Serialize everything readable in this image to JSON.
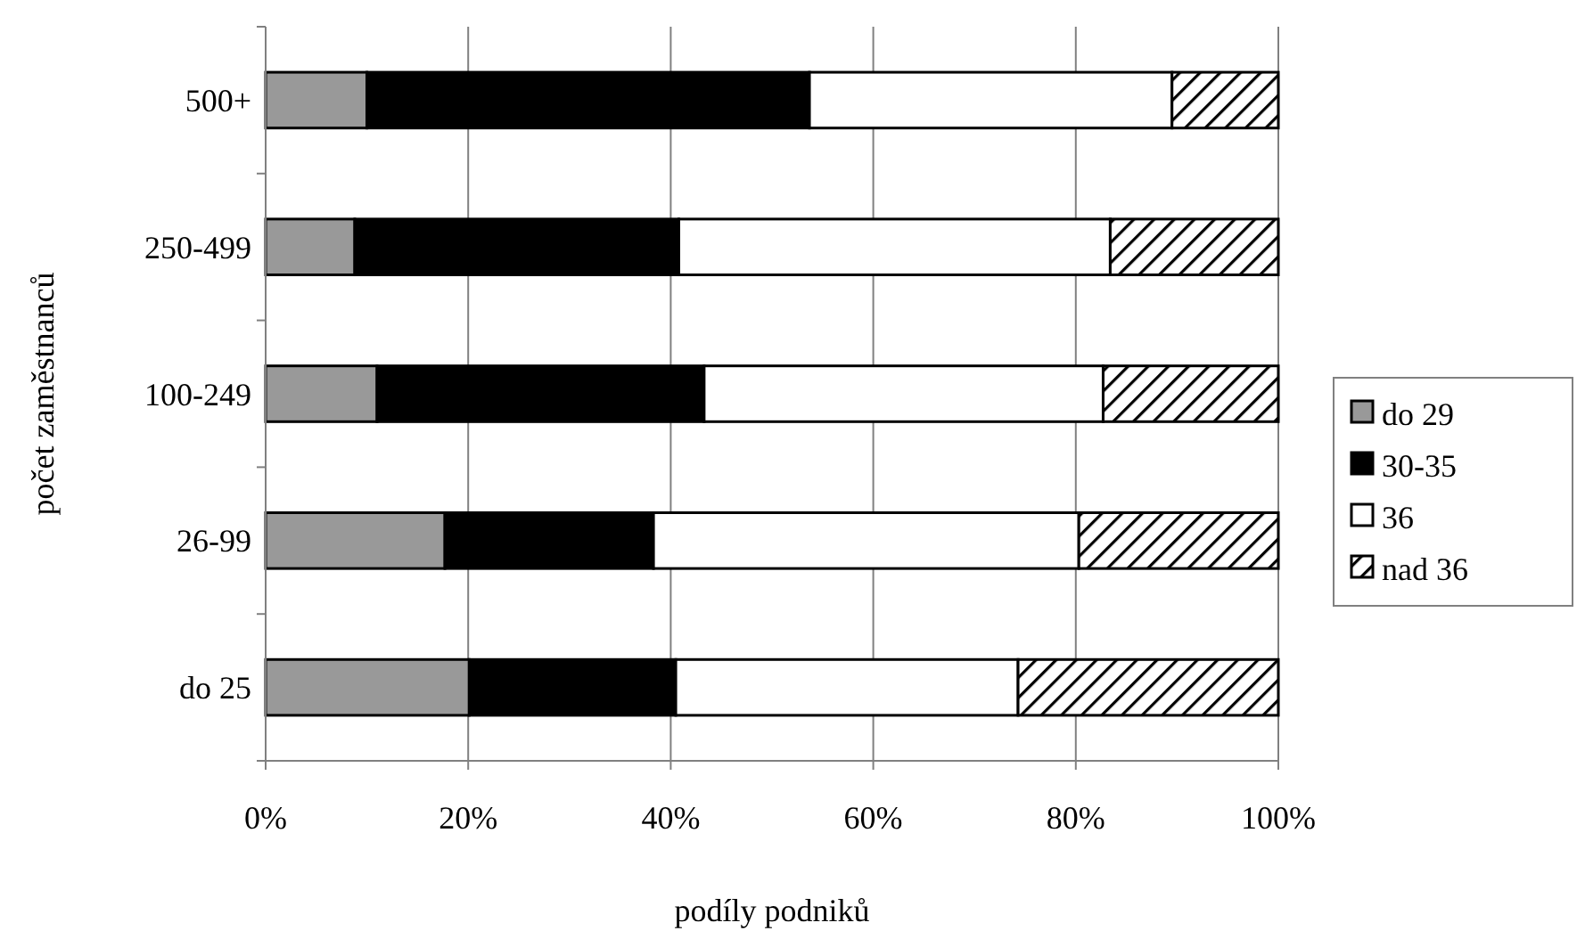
{
  "chart_data": {
    "type": "bar",
    "orientation": "horizontal",
    "stacked": true,
    "xlabel": "podíly podniků",
    "ylabel": "počet zaměstnanců",
    "categories": [
      "500+",
      "250-499",
      "100-249",
      "26-99",
      "do 25"
    ],
    "series": [
      {
        "name": "do 29",
        "color": "#999999",
        "values": [
          10.0,
          8.8,
          11.0,
          17.7,
          20.1
        ]
      },
      {
        "name": "30-35",
        "color": "#000000",
        "values": [
          43.7,
          32.0,
          32.3,
          20.6,
          20.4
        ]
      },
      {
        "name": "36",
        "color": "#ffffff",
        "values": [
          35.8,
          42.6,
          39.4,
          42.0,
          33.8
        ]
      },
      {
        "name": "nad 36",
        "color": "#000000",
        "values": [
          10.5,
          16.6,
          17.3,
          19.7,
          25.7
        ]
      }
    ],
    "xlim": [
      0,
      100
    ],
    "xticks": [
      {
        "value": 0,
        "label": "0%"
      },
      {
        "value": 20,
        "label": "20%"
      },
      {
        "value": 40,
        "label": "40%"
      },
      {
        "value": 60,
        "label": "60%"
      },
      {
        "value": 80,
        "label": "80%"
      },
      {
        "value": 100,
        "label": "100%"
      }
    ],
    "grid": "x",
    "legend": "right"
  }
}
